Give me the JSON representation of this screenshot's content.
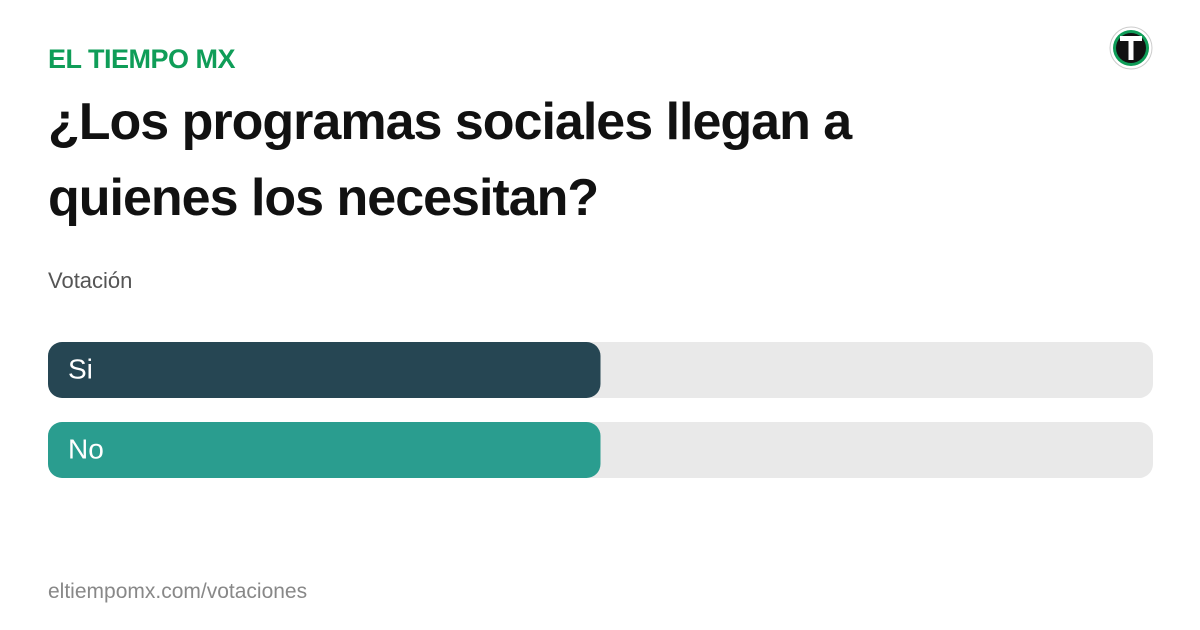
{
  "site": "EL TIEMPO MX",
  "footer": "eltiempomx.com/votaciones",
  "chart_data": {
    "type": "bar",
    "orientation": "horizontal",
    "title": "¿Los programas sociales llegan a quienes los necesitan?",
    "subtitle": "Votación",
    "categories": [
      "Si",
      "No"
    ],
    "values": [
      50,
      50
    ],
    "colors": [
      "#264653",
      "#2a9d8f"
    ],
    "track_color": "#e9e9e9",
    "xlim": [
      0,
      100
    ]
  }
}
